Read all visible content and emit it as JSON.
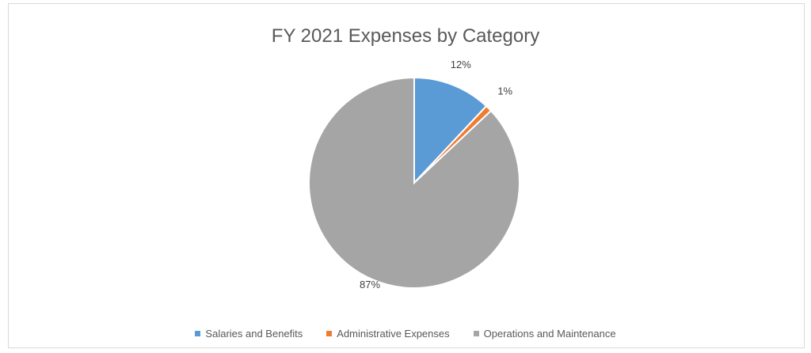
{
  "chart_data": {
    "type": "pie",
    "title": "FY 2021 Expenses by Category",
    "categories": [
      "Salaries and Benefits",
      "Administrative Expenses",
      "Operations and Maintenance"
    ],
    "values": [
      12,
      1,
      87
    ],
    "labels": [
      "12%",
      "1%",
      "87%"
    ],
    "colors": [
      "#5b9bd5",
      "#ed7d31",
      "#a5a5a5"
    ],
    "legend_position": "bottom",
    "start_angle": "12 o'clock",
    "direction": "clockwise"
  }
}
